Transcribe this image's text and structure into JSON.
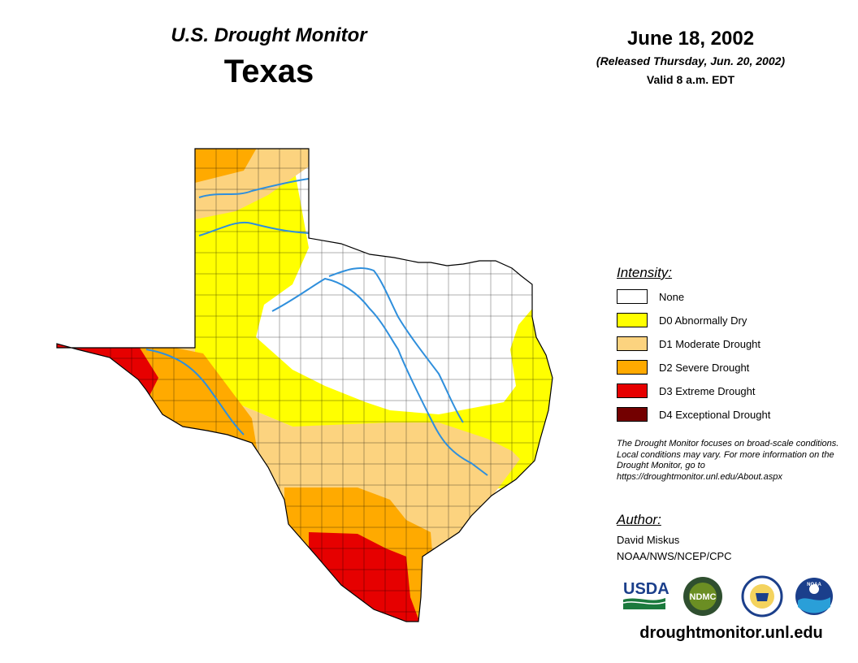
{
  "header": {
    "monitor_title": "U.S. Drought Monitor",
    "region": "Texas",
    "map_date": "June 18, 2002",
    "released": "(Released Thursday, Jun. 20, 2002)",
    "valid": "Valid 8 a.m. EDT"
  },
  "legend": {
    "heading": "Intensity:",
    "items": [
      {
        "label": "None",
        "color": "#ffffff"
      },
      {
        "label": "D0 Abnormally Dry",
        "color": "#ffff00"
      },
      {
        "label": "D1 Moderate Drought",
        "color": "#fcd37f"
      },
      {
        "label": "D2 Severe Drought",
        "color": "#ffaa00"
      },
      {
        "label": "D3 Extreme Drought",
        "color": "#e60000"
      },
      {
        "label": "D4 Exceptional Drought",
        "color": "#730000"
      }
    ]
  },
  "note": "The Drought Monitor focuses on broad-scale conditions. Local conditions may vary. For more information on the Drought Monitor, go to https://droughtmonitor.unl.edu/About.aspx",
  "author": {
    "heading": "Author:",
    "name": "David Miskus",
    "org": "NOAA/NWS/NCEP/CPC"
  },
  "logos": {
    "usda": "USDA",
    "ndmc": "NDMC",
    "noaa": "NOAA"
  },
  "website": "droughtmonitor.unl.edu",
  "colors": {
    "river": "#2f8fdc",
    "county_line": "#000000"
  }
}
